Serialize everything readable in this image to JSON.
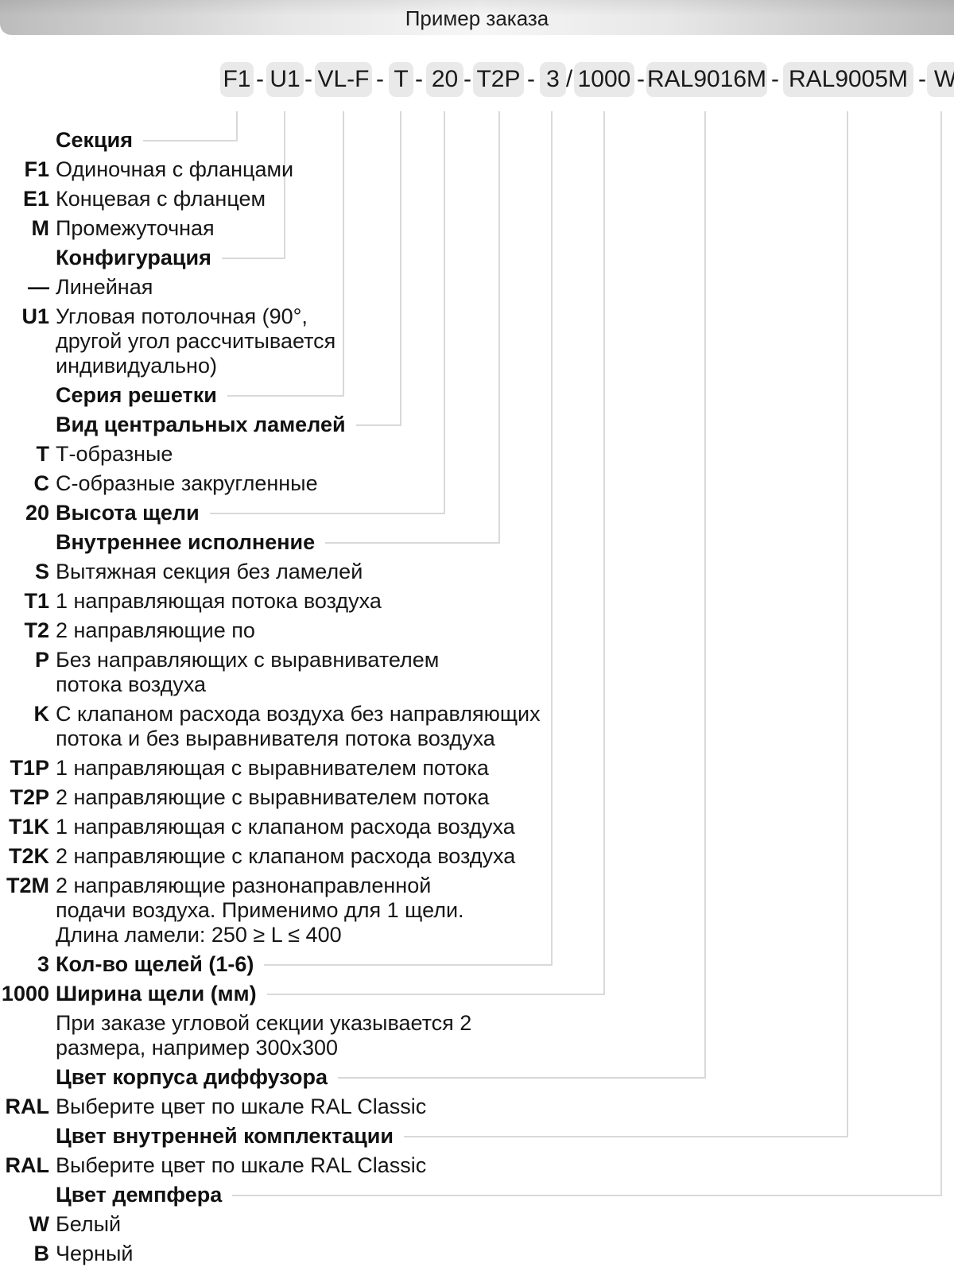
{
  "title_bar": {
    "title": "Пример заказа"
  },
  "order_code": {
    "segments": [
      "F1",
      "U1",
      "VL-F",
      "T",
      "20",
      "T2P",
      "3",
      "1000",
      "RAL9016M",
      "RAL9005M",
      "W"
    ],
    "separators": [
      "-",
      "-",
      "-",
      "-",
      "-",
      "-",
      "/",
      "-",
      "-",
      "-"
    ]
  },
  "legend": {
    "items": [
      {
        "type": "header",
        "code": "",
        "label": "Секция"
      },
      {
        "type": "entry",
        "code": "F1",
        "lines": [
          "Одиночная с фланцами"
        ]
      },
      {
        "type": "entry",
        "code": "E1",
        "lines": [
          "Концевая с фланцем"
        ]
      },
      {
        "type": "entry",
        "code": "M",
        "lines": [
          "Промежуточная"
        ]
      },
      {
        "type": "header",
        "code": "",
        "label": "Конфигурация"
      },
      {
        "type": "entry",
        "code": "—",
        "lines": [
          "Линейная"
        ]
      },
      {
        "type": "entry",
        "code": "U1",
        "lines": [
          "Угловая потолочная (90°,",
          "другой угол рассчитывается",
          "индивидуально)"
        ]
      },
      {
        "type": "header",
        "code": "",
        "label": "Серия решетки"
      },
      {
        "type": "header",
        "code": "",
        "label": "Вид центральных ламелей"
      },
      {
        "type": "entry",
        "code": "T",
        "lines": [
          "Т-образные"
        ]
      },
      {
        "type": "entry",
        "code": "C",
        "lines": [
          "С-образные закругленные"
        ]
      },
      {
        "type": "header",
        "code": "20",
        "label": "Высота щели"
      },
      {
        "type": "header",
        "code": "",
        "label": "Внутреннее исполнение"
      },
      {
        "type": "entry",
        "code": "S",
        "lines": [
          "Вытяжная секция без ламелей"
        ]
      },
      {
        "type": "entry",
        "code": "T1",
        "lines": [
          "1 направляющая потока воздуха"
        ]
      },
      {
        "type": "entry",
        "code": "T2",
        "lines": [
          "2 направляющие по"
        ]
      },
      {
        "type": "entry",
        "code": "P",
        "lines": [
          "Без направляющих с выравнивателем",
          "потока воздуха"
        ]
      },
      {
        "type": "entry",
        "code": "K",
        "lines": [
          "С клапаном расхода воздуха без направляющих",
          "потока и без выравнивателя потока воздуха"
        ]
      },
      {
        "type": "entry",
        "code": "T1P",
        "lines": [
          "1 направляющая с выравнивателем потока"
        ]
      },
      {
        "type": "entry",
        "code": "T2P",
        "lines": [
          "2 направляющие с выравнивателем потока"
        ]
      },
      {
        "type": "entry",
        "code": "T1K",
        "lines": [
          "1 направляющая с клапаном расхода воздуха"
        ]
      },
      {
        "type": "entry",
        "code": "T2K",
        "lines": [
          "2 направляющие с клапаном расхода воздуха"
        ]
      },
      {
        "type": "entry",
        "code": "T2M",
        "lines": [
          "2 направляющие разнонаправленной",
          "подачи воздуха. Применимо для 1 щели.",
          "Длина ламели: 250 ≥ L ≤ 400"
        ]
      },
      {
        "type": "header",
        "code": "3",
        "label": "Кол-во щелей (1-6)"
      },
      {
        "type": "header",
        "code": "1000",
        "label": "Ширина щели (мм)"
      },
      {
        "type": "note",
        "code": "",
        "lines": [
          "При заказе угловой секции указывается 2",
          "размера, например 300х300"
        ]
      },
      {
        "type": "header",
        "code": "",
        "label": "Цвет корпуса диффузора"
      },
      {
        "type": "entry",
        "code": "RAL",
        "lines": [
          "Выберите цвет по шкале RAL Classic"
        ]
      },
      {
        "type": "header",
        "code": "",
        "label": "Цвет внутренней комплектации"
      },
      {
        "type": "entry",
        "code": "RAL",
        "lines": [
          "Выберите цвет по шкале RAL Classic"
        ]
      },
      {
        "type": "header",
        "code": "",
        "label": "Цвет демпфера"
      },
      {
        "type": "entry",
        "code": "W",
        "lines": [
          "Белый"
        ]
      },
      {
        "type": "entry",
        "code": "B",
        "lines": [
          "Черный"
        ]
      }
    ]
  },
  "colors": {
    "chip_bg": "#e9e9e9",
    "connector_line": "#d9d9d9",
    "text": "#161616"
  }
}
